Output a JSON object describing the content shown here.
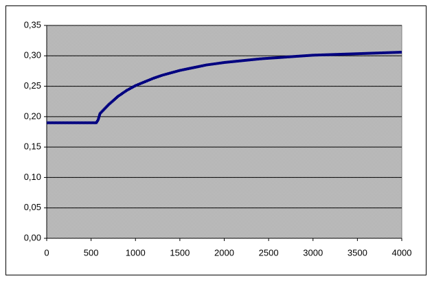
{
  "chart_data": {
    "type": "line",
    "x": [
      0,
      560,
      580,
      600,
      700,
      800,
      900,
      1000,
      1100,
      1200,
      1300,
      1400,
      1500,
      1600,
      1700,
      1800,
      1900,
      2000,
      2200,
      2400,
      2600,
      2800,
      3000,
      3200,
      3400,
      3600,
      3800,
      4000
    ],
    "series": [
      {
        "color": "#000080",
        "values": [
          0.19,
          0.19,
          0.195,
          0.205,
          0.22,
          0.233,
          0.243,
          0.251,
          0.257,
          0.263,
          0.268,
          0.272,
          0.276,
          0.279,
          0.282,
          0.285,
          0.287,
          0.289,
          0.292,
          0.295,
          0.297,
          0.299,
          0.301,
          0.302,
          0.303,
          0.304,
          0.305,
          0.306
        ]
      }
    ],
    "xlim": [
      0,
      4000
    ],
    "xticks": [
      0,
      500,
      1000,
      1500,
      2000,
      2500,
      3000,
      3500,
      4000
    ],
    "ylim": [
      0,
      0.35
    ],
    "yticks": [
      {
        "value": 0,
        "label": "0,00"
      },
      {
        "value": 0.05,
        "label": "0,05"
      },
      {
        "value": 0.1,
        "label": "0,10"
      },
      {
        "value": 0.15,
        "label": "0,15"
      },
      {
        "value": 0.2,
        "label": "0,20"
      },
      {
        "value": 0.25,
        "label": "0,25"
      },
      {
        "value": 0.3,
        "label": "0,30"
      },
      {
        "value": 0.35,
        "label": "0,35"
      }
    ],
    "grid": true
  }
}
